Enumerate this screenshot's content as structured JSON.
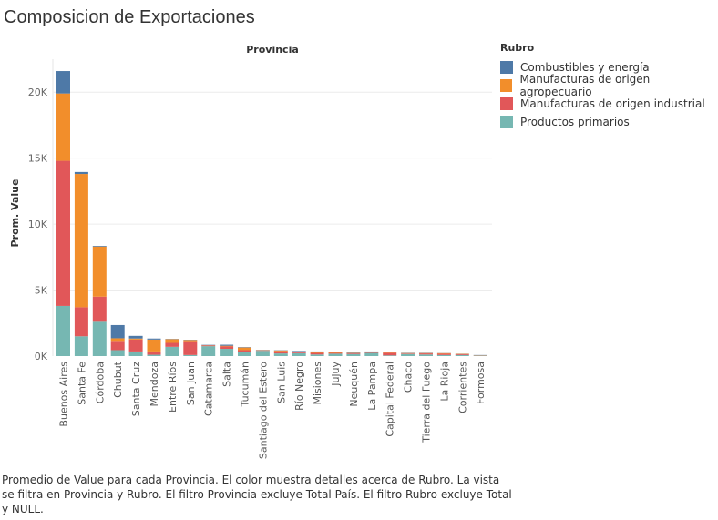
{
  "title": "Composicion de Exportaciones",
  "caption": "Promedio de Value para cada Provincia.  El color muestra detalles acerca de Rubro. La vista se filtra en Provincia y Rubro. El filtro Provincia excluye Total País. El filtro Rubro excluye Total y NULL.",
  "colors": {
    "combustibles": "#4e79a7",
    "moa": "#f28e2b",
    "moi": "#e15759",
    "primarios": "#76b7b2"
  },
  "chart_data": {
    "type": "bar",
    "stacked": true,
    "column_header": "Provincia",
    "ylabel": "Prom. Value",
    "ylim": [
      0,
      22500
    ],
    "yticks": [
      0,
      5000,
      10000,
      15000,
      20000
    ],
    "ytick_labels": [
      "0K",
      "5K",
      "10K",
      "15K",
      "20K"
    ],
    "grid": true,
    "legend_title": "Rubro",
    "legend_position": "right",
    "categories": [
      "Buenos Aires",
      "Santa Fe",
      "Córdoba",
      "Chubut",
      "Santa Cruz",
      "Mendoza",
      "Entre Ríos",
      "San Juan",
      "Catamarca",
      "Salta",
      "Tucumán",
      "Santiago del Estero",
      "San Luis",
      "Río Negro",
      "Misiones",
      "Jujuy",
      "Neuquén",
      "La Pampa",
      "Capital Federal",
      "Chaco",
      "Tierra del Fuego",
      "La Rioja",
      "Corrientes",
      "Formosa"
    ],
    "series": [
      {
        "name": "Productos primarios",
        "key": "primarios",
        "values": [
          3800,
          1500,
          2600,
          450,
          350,
          100,
          700,
          80,
          750,
          550,
          300,
          400,
          200,
          220,
          120,
          180,
          160,
          240,
          50,
          160,
          120,
          80,
          80,
          40
        ]
      },
      {
        "name": "Manufacturas de origen industrial",
        "key": "moi",
        "values": [
          11000,
          2200,
          1900,
          700,
          900,
          250,
          300,
          1050,
          50,
          180,
          150,
          30,
          170,
          70,
          120,
          60,
          60,
          60,
          200,
          40,
          80,
          100,
          60,
          20
        ]
      },
      {
        "name": "Manufacturas de origen agropecuario",
        "key": "moa",
        "values": [
          5100,
          10100,
          3800,
          200,
          80,
          900,
          280,
          90,
          20,
          50,
          200,
          20,
          60,
          60,
          100,
          40,
          30,
          30,
          40,
          30,
          30,
          40,
          30,
          10
        ]
      },
      {
        "name": "Combustibles y energía",
        "key": "combustibles",
        "values": [
          1700,
          150,
          50,
          1000,
          200,
          80,
          20,
          20,
          30,
          80,
          30,
          20,
          20,
          40,
          10,
          30,
          80,
          20,
          10,
          20,
          20,
          10,
          10,
          10
        ]
      }
    ],
    "legend_order": [
      "combustibles",
      "moa",
      "moi",
      "primarios"
    ]
  }
}
